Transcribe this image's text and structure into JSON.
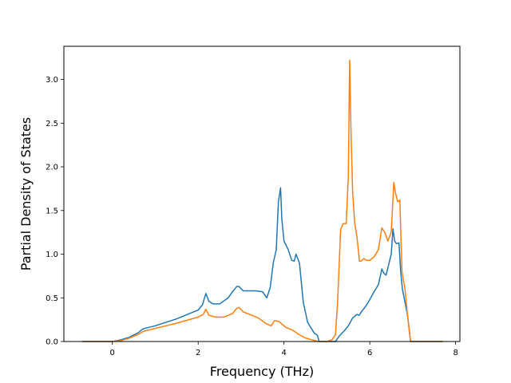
{
  "chart_data": {
    "type": "line",
    "title": "",
    "xlabel": "Frequency (THz)",
    "ylabel": "Partial Density of States",
    "xlim": [
      -1.13,
      8.1
    ],
    "ylim": [
      0.0,
      3.38
    ],
    "xticks": [
      0,
      2,
      4,
      6,
      8
    ],
    "yticks": [
      0.0,
      0.5,
      1.0,
      1.5,
      2.0,
      2.5,
      3.0
    ],
    "xtick_labels": [
      "0",
      "2",
      "4",
      "6",
      "8"
    ],
    "ytick_labels": [
      "0.0",
      "0.5",
      "1.0",
      "1.5",
      "2.0",
      "2.5",
      "3.0"
    ],
    "grid": false,
    "legend": "none",
    "series": [
      {
        "color": "#1f77b4",
        "x": [
          -0.7,
          0.0,
          0.2,
          0.4,
          0.6,
          0.7,
          0.75,
          1.0,
          1.5,
          2.0,
          2.1,
          2.18,
          2.25,
          2.35,
          2.5,
          2.7,
          2.8,
          2.9,
          2.95,
          3.05,
          3.15,
          3.25,
          3.35,
          3.5,
          3.6,
          3.68,
          3.75,
          3.82,
          3.87,
          3.92,
          3.95,
          4.0,
          4.1,
          4.18,
          4.24,
          4.28,
          4.36,
          4.45,
          4.55,
          4.7,
          4.78,
          4.82,
          4.86,
          4.95,
          5.1,
          5.2,
          5.3,
          5.4,
          5.5,
          5.6,
          5.7,
          5.75,
          5.82,
          5.9,
          6.0,
          6.1,
          6.2,
          6.28,
          6.33,
          6.38,
          6.45,
          6.5,
          6.54,
          6.58,
          6.62,
          6.68,
          6.72,
          6.76,
          6.82,
          6.88,
          6.95,
          7.0,
          7.7
        ],
        "y": [
          0.0,
          0.0,
          0.02,
          0.05,
          0.1,
          0.14,
          0.15,
          0.18,
          0.26,
          0.36,
          0.42,
          0.55,
          0.46,
          0.43,
          0.43,
          0.5,
          0.57,
          0.63,
          0.63,
          0.58,
          0.58,
          0.58,
          0.58,
          0.57,
          0.5,
          0.62,
          0.9,
          1.05,
          1.6,
          1.76,
          1.4,
          1.15,
          1.05,
          0.93,
          0.92,
          1.0,
          0.9,
          0.45,
          0.22,
          0.1,
          0.07,
          0.0,
          0.0,
          0.0,
          0.0,
          0.0,
          0.07,
          0.12,
          0.18,
          0.27,
          0.31,
          0.3,
          0.35,
          0.4,
          0.48,
          0.57,
          0.65,
          0.83,
          0.78,
          0.76,
          0.9,
          1.0,
          1.29,
          1.15,
          1.12,
          1.13,
          0.8,
          0.6,
          0.45,
          0.3,
          0.0,
          0.0,
          0.0
        ]
      },
      {
        "color": "#ff7f0e",
        "x": [
          -0.7,
          0.0,
          0.2,
          0.4,
          0.6,
          0.7,
          0.75,
          1.0,
          1.5,
          2.0,
          2.12,
          2.18,
          2.25,
          2.4,
          2.6,
          2.8,
          2.9,
          2.95,
          3.05,
          3.2,
          3.4,
          3.6,
          3.7,
          3.78,
          3.88,
          3.95,
          4.05,
          4.2,
          4.35,
          4.5,
          4.65,
          4.8,
          5.0,
          5.12,
          5.2,
          5.25,
          5.32,
          5.38,
          5.45,
          5.5,
          5.53,
          5.56,
          5.6,
          5.65,
          5.7,
          5.76,
          5.8,
          5.86,
          5.92,
          6.0,
          6.1,
          6.2,
          6.28,
          6.35,
          6.42,
          6.5,
          6.56,
          6.6,
          6.65,
          6.7,
          6.75,
          6.82,
          6.88,
          6.95,
          7.0,
          7.7
        ],
        "y": [
          0.0,
          0.0,
          0.01,
          0.04,
          0.08,
          0.11,
          0.12,
          0.15,
          0.21,
          0.28,
          0.31,
          0.37,
          0.3,
          0.28,
          0.28,
          0.32,
          0.38,
          0.39,
          0.34,
          0.31,
          0.27,
          0.2,
          0.18,
          0.24,
          0.23,
          0.2,
          0.16,
          0.13,
          0.08,
          0.04,
          0.02,
          0.0,
          0.0,
          0.02,
          0.08,
          0.45,
          1.28,
          1.35,
          1.35,
          1.9,
          3.22,
          2.45,
          1.7,
          1.35,
          1.2,
          0.92,
          0.92,
          0.95,
          0.93,
          0.93,
          0.97,
          1.05,
          1.3,
          1.25,
          1.15,
          1.25,
          1.82,
          1.7,
          1.6,
          1.62,
          0.8,
          0.6,
          0.3,
          0.0,
          0.0,
          0.0
        ]
      }
    ]
  }
}
